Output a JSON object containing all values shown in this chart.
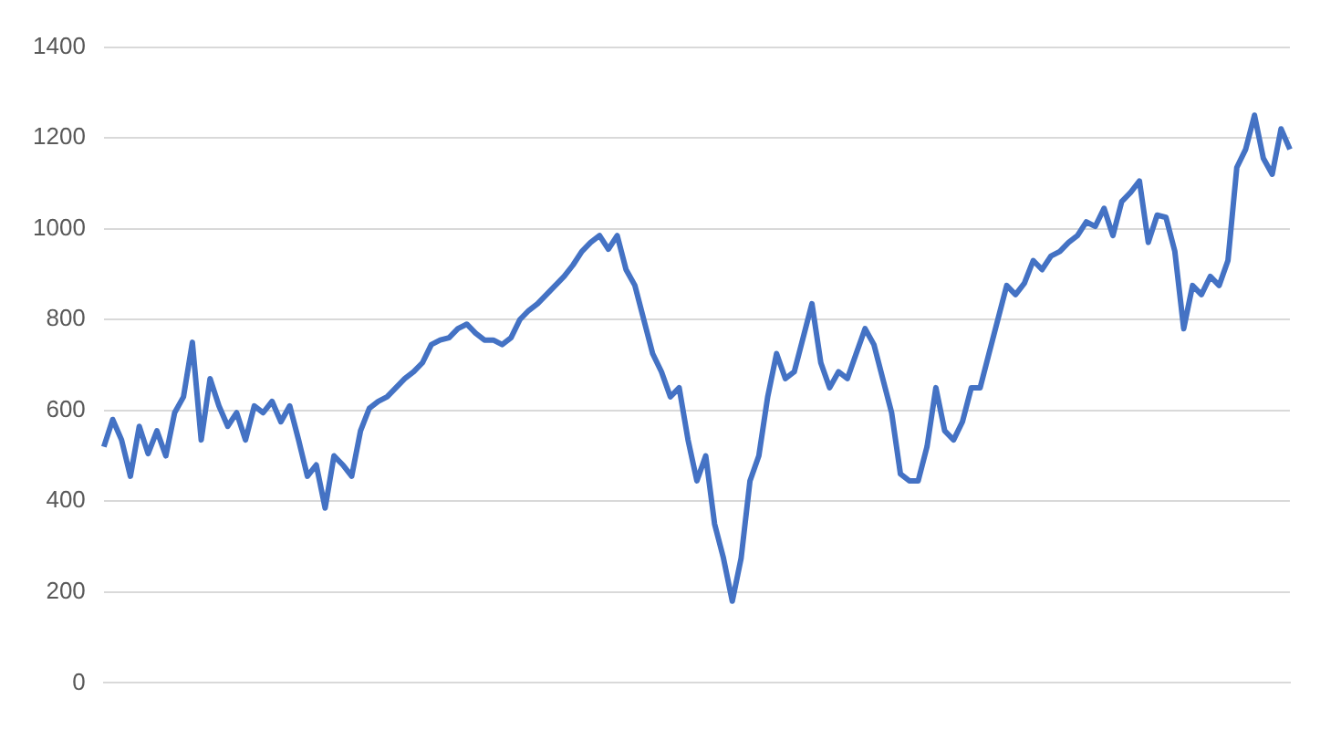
{
  "chart_data": {
    "type": "line",
    "categories": [
      null,
      null,
      null,
      null,
      null,
      null,
      null,
      null,
      null,
      null,
      null,
      null,
      null,
      null,
      null,
      null,
      null,
      null,
      null,
      null,
      null,
      null,
      null,
      null,
      null,
      null,
      null,
      null,
      null,
      null,
      null,
      null,
      null,
      null,
      null,
      null,
      null,
      null,
      null,
      null,
      null,
      null,
      null,
      null,
      null,
      null,
      null,
      null,
      null,
      null,
      null,
      null,
      null,
      null,
      null,
      null,
      null,
      null,
      null,
      null,
      null,
      null,
      null,
      null,
      null,
      null,
      null,
      null,
      null,
      null,
      null,
      null,
      null,
      null,
      null,
      null,
      null,
      null,
      null,
      null,
      null,
      null,
      null,
      null,
      null,
      null,
      null,
      null,
      null,
      null,
      null,
      null,
      null,
      null,
      null,
      null,
      null,
      null,
      null,
      null,
      null,
      null,
      null,
      null,
      null,
      null,
      null,
      null,
      null,
      null,
      null,
      null,
      null,
      null,
      null,
      null,
      null,
      null,
      null,
      null,
      null,
      null,
      null,
      null,
      null,
      null,
      null,
      null,
      null,
      null,
      null,
      null,
      null,
      null,
      null
    ],
    "series": [
      {
        "color": "#4472c4",
        "values": [
          520,
          580,
          535,
          455,
          565,
          505,
          555,
          500,
          595,
          630,
          750,
          535,
          670,
          610,
          565,
          595,
          535,
          610,
          595,
          620,
          575,
          610,
          535,
          455,
          480,
          385,
          500,
          480,
          455,
          555,
          605,
          620,
          630,
          650,
          670,
          685,
          705,
          745,
          755,
          760,
          780,
          790,
          770,
          755,
          755,
          745,
          760,
          800,
          820,
          835,
          855,
          875,
          895,
          920,
          950,
          970,
          985,
          955,
          985,
          910,
          875,
          800,
          725,
          685,
          630,
          650,
          535,
          445,
          500,
          350,
          275,
          180,
          275,
          445,
          500,
          630,
          725,
          670,
          685,
          760,
          835,
          705,
          650,
          685,
          670,
          725,
          780,
          745,
          670,
          595,
          460,
          445,
          445,
          520,
          650,
          555,
          535,
          575,
          650,
          650,
          725,
          800,
          875,
          855,
          880,
          930,
          910,
          940,
          950,
          970,
          985,
          1015,
          1005,
          1045,
          985,
          1060,
          1080,
          1105,
          970,
          1030,
          1025,
          950,
          780,
          875,
          855,
          895,
          875,
          930,
          1135,
          1175,
          1250,
          1155,
          1120,
          1220,
          1175
        ]
      }
    ],
    "ylim": [
      0,
      1400
    ],
    "yticks": [
      0,
      200,
      400,
      600,
      800,
      1000,
      1200,
      1400
    ],
    "grid": "y",
    "tick_labels": "y",
    "line_style": "solid",
    "marker": "none"
  }
}
